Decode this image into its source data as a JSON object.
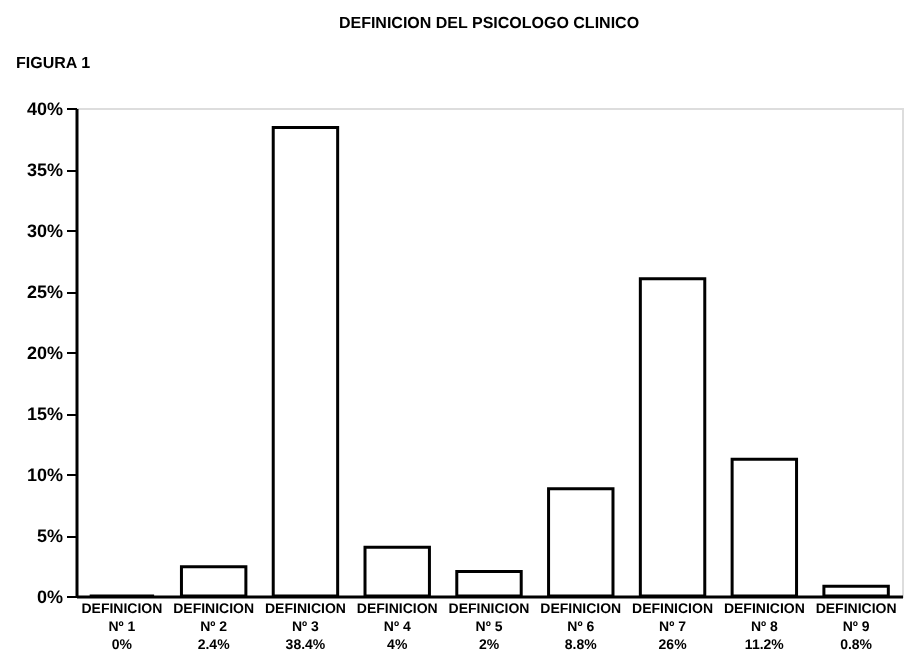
{
  "chart_data": {
    "type": "bar",
    "title": "DEFINICION DEL PSICOLOGO CLINICO",
    "annotations": [
      "FIGURA 1"
    ],
    "categories": [
      "DEFINICION\nNº 1",
      "DEFINICION\nNº 2",
      "DEFINICION\nNº 3",
      "DEFINICION\nNº 4",
      "DEFINICION\nNº 5",
      "DEFINICION\nNº 6",
      "DEFINICION\nNº 7",
      "DEFINICION\nNº 8",
      "DEFINICION\nNº 9"
    ],
    "values": [
      0,
      2.4,
      38.4,
      4,
      2,
      8.8,
      26,
      11.2,
      0.8
    ],
    "value_labels": [
      "0%",
      "2.4%",
      "38.4%",
      "4%",
      "2%",
      "8.8%",
      "26%",
      "11.2%",
      "0.8%"
    ],
    "color": "#ffffff",
    "ylim": [
      0,
      40
    ],
    "yticks": [
      {
        "value": 0,
        "label": "0%"
      },
      {
        "value": 5,
        "label": "5%"
      },
      {
        "value": 10,
        "label": "10%"
      },
      {
        "value": 15,
        "label": "15%"
      },
      {
        "value": 20,
        "label": "20%"
      },
      {
        "value": 25,
        "label": "25%"
      },
      {
        "value": 30,
        "label": "30%"
      },
      {
        "value": 35,
        "label": "35%"
      },
      {
        "value": 40,
        "label": "40%"
      }
    ],
    "grid": false
  }
}
